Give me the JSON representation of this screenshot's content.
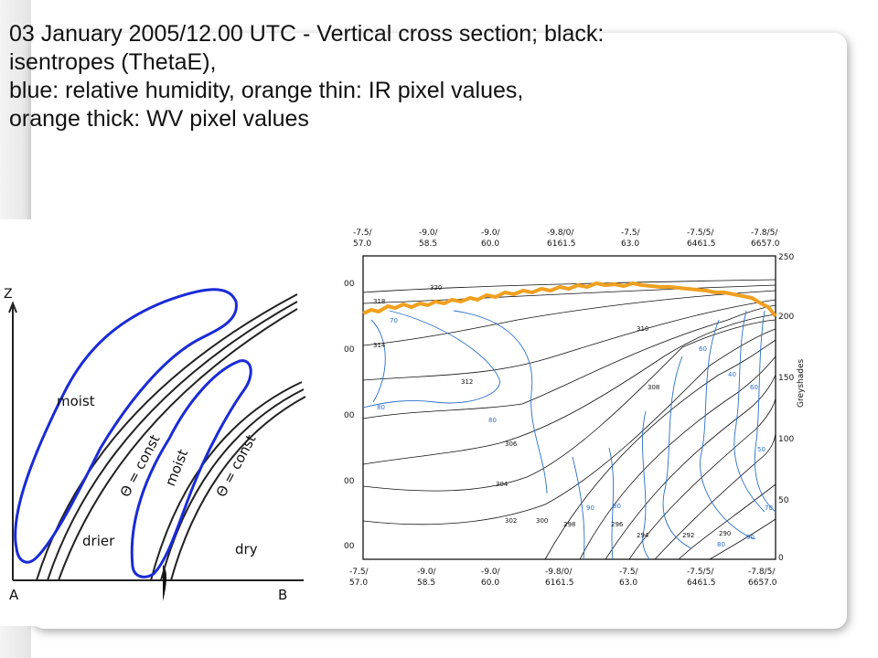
{
  "slide": {
    "title_lines": [
      "03 January 2005/12.00 UTC - Vertical cross section; black:",
      "isentropes (ThetaE),",
      "blue: relative humidity, orange thin: IR pixel values,",
      "orange thick: WV pixel values"
    ]
  },
  "schematic": {
    "z_axis": "Z",
    "point_a": "A",
    "point_b": "B",
    "moist_left": "moist",
    "moist_right": "moist",
    "drier": "drier",
    "dry": "dry",
    "theta_left": "Θ = const",
    "theta_right": "Θ = const",
    "colors": {
      "moist_outline": "#1a2bd6",
      "lines": "#222222"
    }
  },
  "cross_section": {
    "top_ticks": [
      {
        "lon": "-7.5/",
        "lat": "57.0"
      },
      {
        "lon": "-9.0/",
        "lat": "58.5"
      },
      {
        "lon": "-9.0/",
        "lat": "60.0"
      },
      {
        "lon": "-9.8/0/",
        "lat": "6161.5"
      },
      {
        "lon": "-7.5/",
        "lat": "63.0"
      },
      {
        "lon": "-7.5/5/",
        "lat": "6461.5"
      },
      {
        "lon": "-7.8/5/",
        "lat": "6657.0"
      }
    ],
    "bottom_ticks": [
      {
        "lon": "-7.5/",
        "lat": "57.0"
      },
      {
        "lon": "-9.0/",
        "lat": "58.5"
      },
      {
        "lon": "-9.0/",
        "lat": "60.0"
      },
      {
        "lon": "-9.8/0/",
        "lat": "6161.5"
      },
      {
        "lon": "-7.5/",
        "lat": "63.0"
      },
      {
        "lon": "-7.5/5/",
        "lat": "6461.5"
      },
      {
        "lon": "-7.8/5/",
        "lat": "6657.0"
      }
    ],
    "left_ticks": [
      "00",
      "00",
      "00",
      "00",
      "00"
    ],
    "right_axis_label": "Greyshades",
    "right_ticks": [
      "250",
      "200",
      "150",
      "100",
      "50",
      "0"
    ],
    "isentrope_labels": [
      "320",
      "318",
      "314",
      "312",
      "310",
      "308",
      "306",
      "304",
      "302",
      "300",
      "298",
      "296",
      "294",
      "292",
      "290"
    ],
    "humidity_labels": [
      "70",
      "80",
      "80",
      "90",
      "80",
      "60",
      "40",
      "60",
      "50",
      "70",
      "80",
      "90"
    ],
    "colors": {
      "isentropes": "#111111",
      "humidity": "#2a6fc9",
      "wv": "#f0a020"
    }
  }
}
